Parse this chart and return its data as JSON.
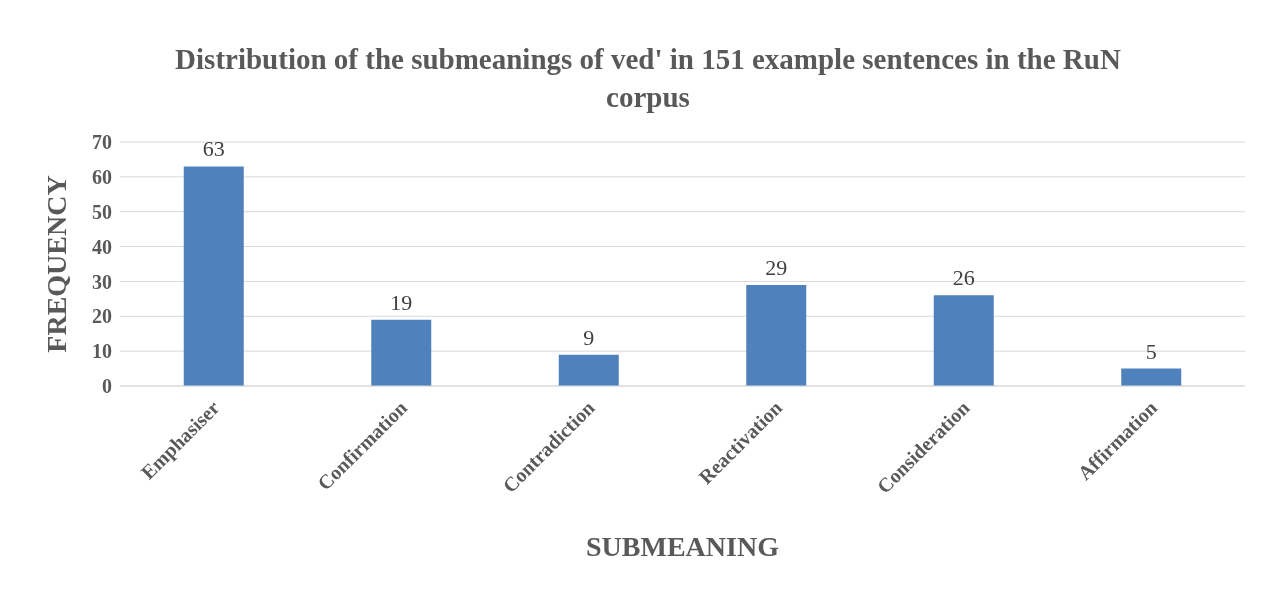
{
  "chart_data": {
    "type": "bar",
    "title": "Distribution of the submeanings of ved' in 151 example sentences in the RuN corpus",
    "xlabel": "SUBMEANING",
    "ylabel": "FREQUENCY",
    "categories": [
      "Emphasiser",
      "Confirmation",
      "Contradiction",
      "Reactivation",
      "Consideration",
      "Affirmation"
    ],
    "values": [
      63,
      19,
      9,
      29,
      26,
      5
    ],
    "color": "#4f81bd",
    "ylim": [
      0,
      70
    ],
    "yticks": [
      0,
      10,
      20,
      30,
      40,
      50,
      60,
      70
    ],
    "grid": "y",
    "data_labels": true
  }
}
